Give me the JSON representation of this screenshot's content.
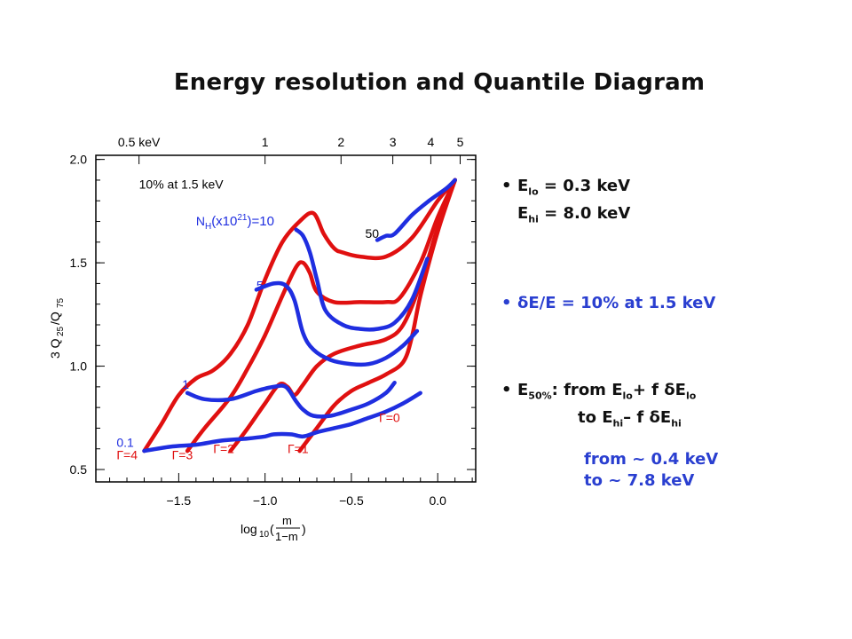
{
  "title": "Energy resolution and Quantile Diagram",
  "bullets": {
    "b1": {
      "line1_a": "E",
      "line1_sub": "lo",
      "line1_b": " = 0.3 keV",
      "line2_a": "E",
      "line2_sub": "hi",
      "line2_b": " = 8.0 keV"
    },
    "b2": {
      "text": "δE/E = 10% at 1.5 keV"
    },
    "b3": {
      "l1_a": "E",
      "l1_sub": "50%",
      "l1_b": ":  from E",
      "l1_sub2": "lo",
      "l1_c": "+ f δE",
      "l1_sub3": "lo",
      "l2_a": "to E",
      "l2_sub": "hi",
      "l2_b": "– f δE",
      "l2_sub2": "hi"
    },
    "b4": {
      "line1": "from ~ 0.4 keV",
      "line2": "to ~ 7.8 keV"
    },
    "bullet_char": "•"
  },
  "chart_data": {
    "type": "line",
    "title": "",
    "xlabel": "log10(m/(1−m))",
    "ylabel": "3 Q25/Q75",
    "xlim": [
      -1.98,
      0.22
    ],
    "ylim": [
      0.44,
      2.02
    ],
    "x_ticks": [
      "-1.5",
      "-1.0",
      "-0.5",
      "0.0"
    ],
    "x_tick_values": [
      -1.5,
      -1.0,
      -0.5,
      0.0
    ],
    "y_ticks": [
      "0.5",
      "1.0",
      "1.5",
      "2.0"
    ],
    "y_tick_values": [
      0.5,
      1.0,
      1.5,
      2.0
    ],
    "top_axis_label_text": [
      "0.5 keV",
      "1",
      "2",
      "3",
      "4",
      "5"
    ],
    "top_axis_label_x": [
      -1.73,
      -1.0,
      -0.56,
      -0.26,
      -0.04,
      0.13
    ],
    "annotations": [
      {
        "text": "10% at 1.5 keV",
        "x": -1.73,
        "y": 1.86,
        "color": "#000000"
      },
      {
        "text": "N_H(x10^21)=10",
        "x": -1.4,
        "y": 1.68,
        "color": "#1f2ee0"
      },
      {
        "text": "50",
        "x": -0.42,
        "y": 1.62,
        "color": "#000000"
      },
      {
        "text": "5",
        "x": -1.05,
        "y": 1.37,
        "color": "#1f2ee0"
      },
      {
        "text": "1",
        "x": -1.48,
        "y": 0.89,
        "color": "#1f2ee0"
      },
      {
        "text": "Γ=0",
        "x": -0.34,
        "y": 0.73,
        "color": "#e01010"
      },
      {
        "text": "0.1",
        "x": -1.86,
        "y": 0.61,
        "color": "#1f2ee0"
      },
      {
        "text": "Γ=4",
        "x": -1.86,
        "y": 0.55,
        "color": "#e01010"
      },
      {
        "text": "Γ=3",
        "x": -1.54,
        "y": 0.55,
        "color": "#e01010"
      },
      {
        "text": "Γ=2",
        "x": -1.3,
        "y": 0.58,
        "color": "#e01010"
      },
      {
        "text": "Γ=1",
        "x": -0.87,
        "y": 0.58,
        "color": "#e01010"
      }
    ],
    "series": [
      {
        "color": "#e01010",
        "x": [
          -1.7,
          -1.6,
          -1.5,
          -1.4,
          -1.3,
          -1.2,
          -1.1,
          -1.0,
          -0.9,
          -0.8,
          -0.72,
          -0.66,
          -0.6,
          -0.55,
          -0.45,
          -0.3,
          -0.15,
          0.0,
          0.1
        ],
        "y": [
          0.59,
          0.72,
          0.86,
          0.94,
          0.98,
          1.06,
          1.2,
          1.42,
          1.6,
          1.7,
          1.74,
          1.64,
          1.57,
          1.55,
          1.53,
          1.53,
          1.62,
          1.8,
          1.9
        ]
      },
      {
        "color": "#e01010",
        "x": [
          -1.45,
          -1.35,
          -1.2,
          -1.1,
          -1.0,
          -0.9,
          -0.82,
          -0.78,
          -0.74,
          -0.7,
          -0.6,
          -0.45,
          -0.3,
          -0.22,
          -0.1,
          0.0,
          0.1
        ],
        "y": [
          0.59,
          0.7,
          0.85,
          0.99,
          1.15,
          1.34,
          1.48,
          1.5,
          1.45,
          1.36,
          1.31,
          1.31,
          1.31,
          1.33,
          1.5,
          1.72,
          1.9
        ]
      },
      {
        "color": "#e01010",
        "x": [
          -1.2,
          -1.1,
          -1.0,
          -0.92,
          -0.87,
          -0.83,
          -0.78,
          -0.7,
          -0.6,
          -0.45,
          -0.3,
          -0.2,
          -0.1,
          0.0,
          0.1
        ],
        "y": [
          0.59,
          0.7,
          0.82,
          0.91,
          0.9,
          0.86,
          0.91,
          1.0,
          1.06,
          1.1,
          1.13,
          1.2,
          1.4,
          1.67,
          1.9
        ]
      },
      {
        "color": "#e01010",
        "x": [
          -0.8,
          -0.7,
          -0.6,
          -0.5,
          -0.4,
          -0.3,
          -0.2,
          -0.15,
          -0.1,
          0.0,
          0.1
        ],
        "y": [
          0.59,
          0.7,
          0.81,
          0.88,
          0.92,
          0.96,
          1.02,
          1.14,
          1.34,
          1.65,
          1.9
        ]
      },
      {
        "color": "#1f2ee0",
        "x": [
          -1.7,
          -1.55,
          -1.4,
          -1.25,
          -1.1,
          -1.0,
          -0.95,
          -0.85,
          -0.78,
          -0.7,
          -0.6,
          -0.5,
          -0.4,
          -0.3,
          -0.2,
          -0.1
        ],
        "y": [
          0.59,
          0.61,
          0.62,
          0.64,
          0.65,
          0.66,
          0.67,
          0.67,
          0.66,
          0.68,
          0.7,
          0.72,
          0.75,
          0.78,
          0.82,
          0.87
        ]
      },
      {
        "color": "#1f2ee0",
        "x": [
          -1.45,
          -1.35,
          -1.2,
          -1.05,
          -0.95,
          -0.88,
          -0.82,
          -0.78,
          -0.72,
          -0.62,
          -0.5,
          -0.4,
          -0.3,
          -0.25
        ],
        "y": [
          0.87,
          0.84,
          0.84,
          0.88,
          0.9,
          0.9,
          0.83,
          0.79,
          0.76,
          0.76,
          0.79,
          0.82,
          0.87,
          0.92
        ]
      },
      {
        "color": "#1f2ee0",
        "x": [
          -1.05,
          -0.95,
          -0.88,
          -0.83,
          -0.78,
          -0.72,
          -0.62,
          -0.5,
          -0.4,
          -0.3,
          -0.2,
          -0.12
        ],
        "y": [
          1.37,
          1.4,
          1.39,
          1.32,
          1.16,
          1.08,
          1.03,
          1.01,
          1.01,
          1.04,
          1.1,
          1.17
        ]
      },
      {
        "color": "#1f2ee0",
        "x": [
          -0.82,
          -0.78,
          -0.74,
          -0.7,
          -0.65,
          -0.55,
          -0.45,
          -0.35,
          -0.25,
          -0.15,
          -0.06
        ],
        "y": [
          1.66,
          1.63,
          1.55,
          1.42,
          1.27,
          1.2,
          1.18,
          1.18,
          1.21,
          1.32,
          1.52
        ]
      },
      {
        "color": "#1f2ee0",
        "x": [
          -0.35,
          -0.3,
          -0.25,
          -0.15,
          -0.05,
          0.05,
          0.1
        ],
        "y": [
          1.61,
          1.63,
          1.64,
          1.73,
          1.8,
          1.86,
          1.9
        ]
      }
    ]
  }
}
